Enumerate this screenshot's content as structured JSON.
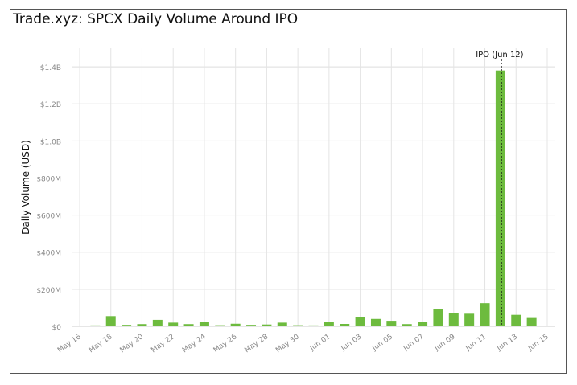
{
  "chart_data": {
    "type": "bar",
    "title": "Trade.xyz: SPCX Daily Volume Around IPO",
    "xlabel": "",
    "ylabel": "Daily Volume (USD)",
    "ylim": [
      0,
      1500000000
    ],
    "yticks": [
      {
        "value": 0,
        "label": "$0"
      },
      {
        "value": 200000000,
        "label": "$200M"
      },
      {
        "value": 400000000,
        "label": "$400M"
      },
      {
        "value": 600000000,
        "label": "$600M"
      },
      {
        "value": 800000000,
        "label": "$800M"
      },
      {
        "value": 1000000000,
        "label": "$1.0B"
      },
      {
        "value": 1200000000,
        "label": "$1.2B"
      },
      {
        "value": 1400000000,
        "label": "$1.4B"
      }
    ],
    "xlim": [
      "May 16",
      "Jun 15"
    ],
    "xticks": [
      "May 16",
      "May 18",
      "May 20",
      "May 22",
      "May 24",
      "May 26",
      "May 28",
      "May 30",
      "Jun 01",
      "Jun 03",
      "Jun 05",
      "Jun 07",
      "Jun 09",
      "Jun 11",
      "Jun 13",
      "Jun 15"
    ],
    "categories": [
      "May 17",
      "May 18",
      "May 19",
      "May 20",
      "May 21",
      "May 22",
      "May 23",
      "May 24",
      "May 25",
      "May 26",
      "May 27",
      "May 28",
      "May 29",
      "May 30",
      "May 31",
      "Jun 01",
      "Jun 02",
      "Jun 03",
      "Jun 04",
      "Jun 05",
      "Jun 06",
      "Jun 07",
      "Jun 08",
      "Jun 09",
      "Jun 10",
      "Jun 11",
      "Jun 12",
      "Jun 13",
      "Jun 14"
    ],
    "values": [
      5000000,
      55000000,
      8000000,
      12000000,
      35000000,
      20000000,
      12000000,
      22000000,
      6000000,
      14000000,
      8000000,
      10000000,
      20000000,
      6000000,
      5000000,
      22000000,
      13000000,
      52000000,
      40000000,
      30000000,
      12000000,
      22000000,
      92000000,
      72000000,
      68000000,
      125000000,
      1380000000,
      62000000,
      45000000
    ],
    "bar_color": "#6dbb3e",
    "grid": true,
    "annotations": [
      {
        "x": "Jun 12",
        "label": "IPO (Jun 12)",
        "style": "dotted-vertical-line"
      }
    ]
  }
}
